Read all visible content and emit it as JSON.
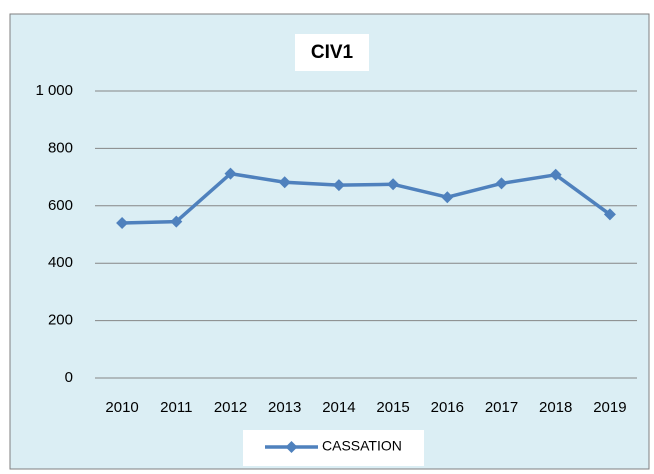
{
  "chart_data": {
    "type": "line",
    "title": "CIV1",
    "categories": [
      "2010",
      "2011",
      "2012",
      "2013",
      "2014",
      "2015",
      "2016",
      "2017",
      "2018",
      "2019"
    ],
    "series": [
      {
        "name": "CASSATION",
        "color": "#4f81bd",
        "values": [
          540,
          545,
          712,
          682,
          672,
          675,
          630,
          678,
          708,
          570
        ]
      }
    ],
    "ylim": [
      0,
      1000
    ],
    "yticks": [
      0,
      200,
      400,
      600,
      800,
      {
        "value": 1000,
        "label": "1 000"
      }
    ],
    "grid": true,
    "legend": "bottom"
  }
}
